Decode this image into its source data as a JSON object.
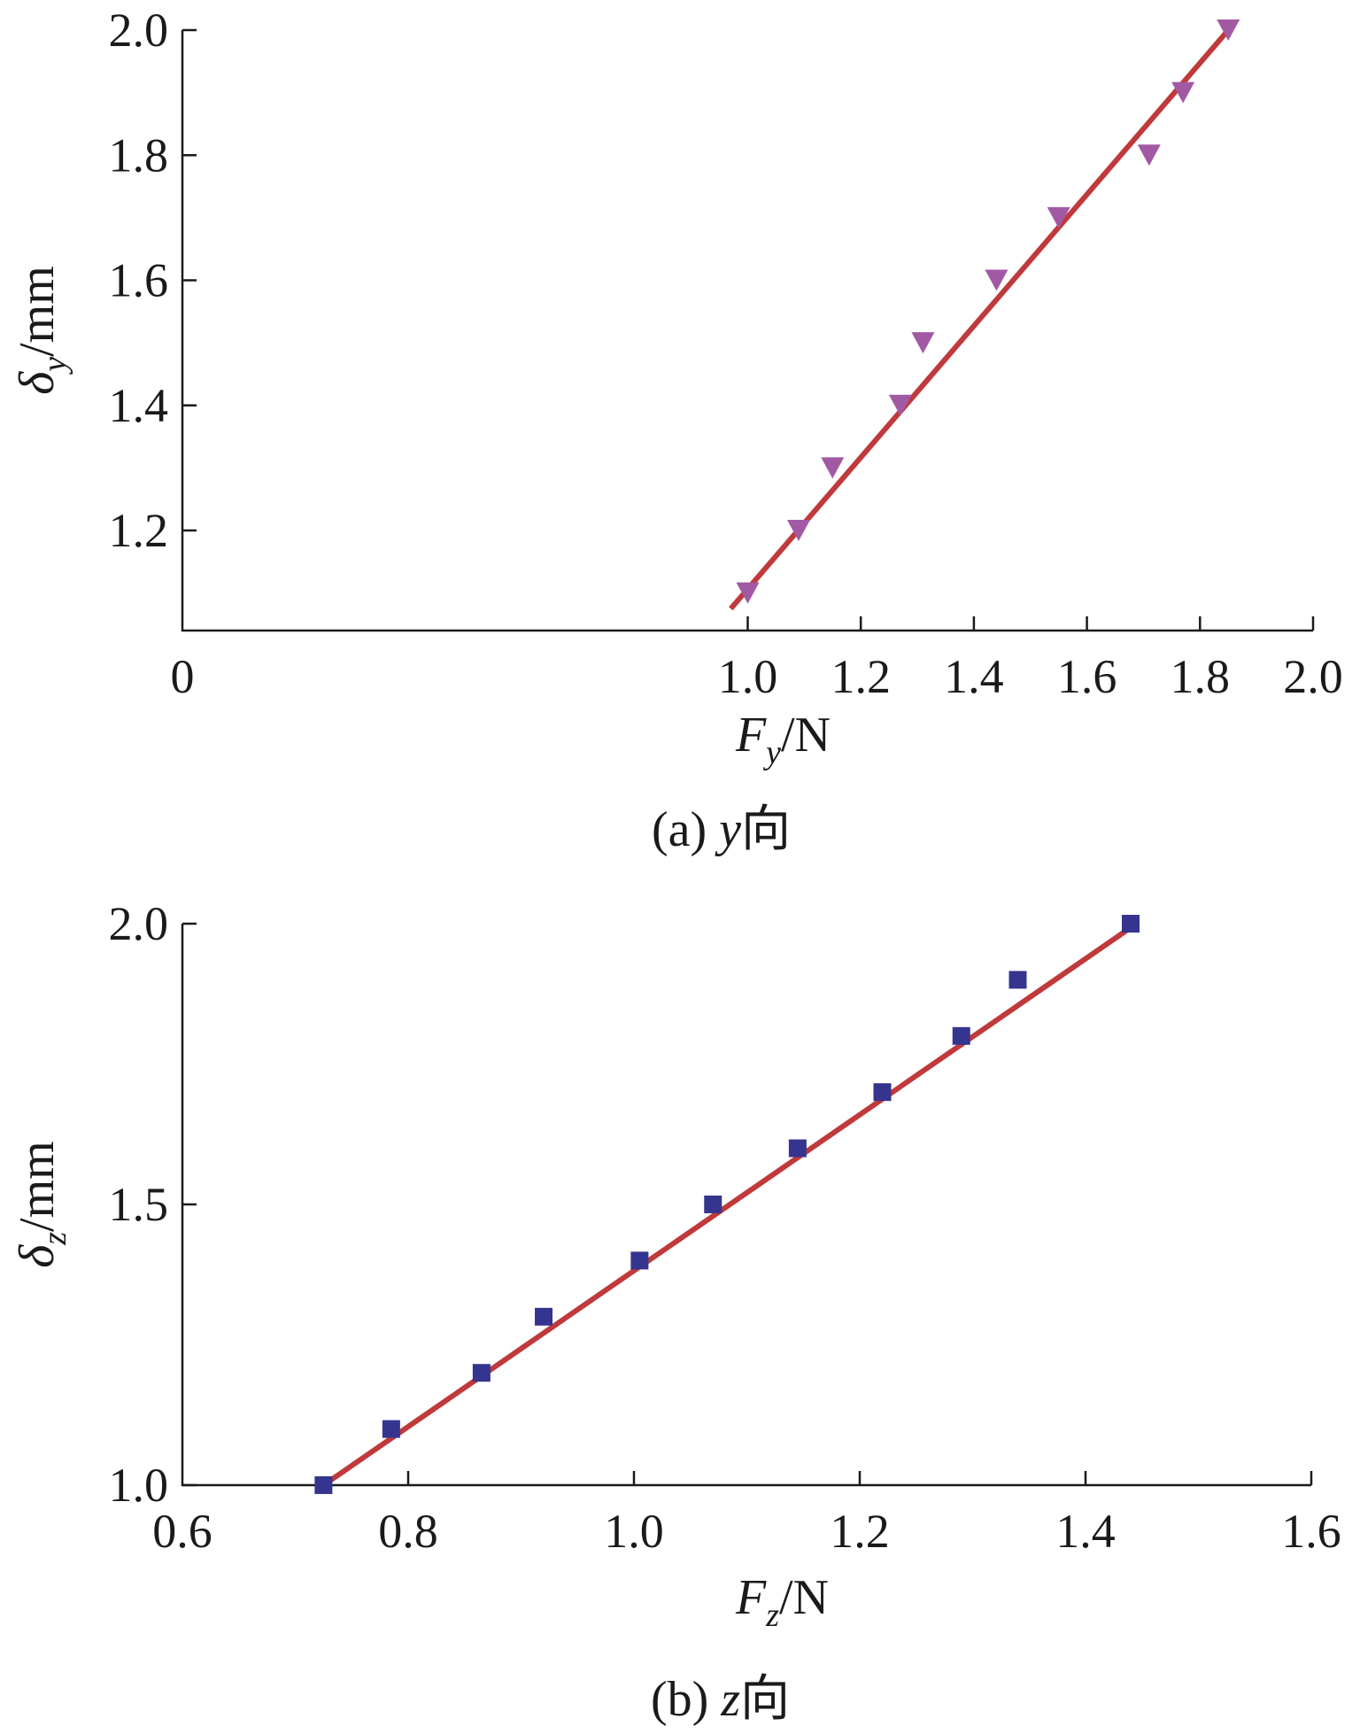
{
  "chart_data": [
    {
      "type": "scatter",
      "caption_prefix": "(a)",
      "caption_var": "y",
      "caption_suffix": "向",
      "xlabel": {
        "var": "F",
        "sub": "y",
        "unit": "/N"
      },
      "ylabel": {
        "var": "δ",
        "sub": "y",
        "unit": "/mm"
      },
      "xlim": [
        0,
        2.0
      ],
      "ylim": [
        1.04,
        2.0
      ],
      "xticks": [
        0,
        1.0,
        1.2,
        1.4,
        1.6,
        1.8,
        2.0
      ],
      "xtick_labels": [
        "0",
        "1.0",
        "1.2",
        "1.4",
        "1.6",
        "1.8",
        "2.0"
      ],
      "yticks": [
        1.2,
        1.4,
        1.6,
        1.8,
        2.0
      ],
      "ytick_labels": [
        "1.2",
        "1.4",
        "1.6",
        "1.8",
        "2.0"
      ],
      "grid": false,
      "series": [
        {
          "marker": "triangle-down",
          "color": "#a259a3",
          "x": [
            1.0,
            1.09,
            1.15,
            1.27,
            1.31,
            1.44,
            1.55,
            1.71,
            1.77,
            1.85
          ],
          "y": [
            1.1,
            1.2,
            1.3,
            1.4,
            1.5,
            1.6,
            1.7,
            1.8,
            1.9,
            2.0
          ]
        }
      ],
      "fit_line": {
        "color": "#c0393b",
        "x": [
          0.97,
          1.85
        ],
        "y": [
          1.075,
          2.0
        ]
      }
    },
    {
      "type": "scatter",
      "caption_prefix": "(b)",
      "caption_var": "z",
      "caption_suffix": "向",
      "xlabel": {
        "var": "F",
        "sub": "z",
        "unit": "/N"
      },
      "ylabel": {
        "var": "δ",
        "sub": "z",
        "unit": "/mm"
      },
      "xlim": [
        0.6,
        1.6
      ],
      "ylim": [
        1.0,
        2.0
      ],
      "xticks": [
        0.6,
        0.8,
        1.0,
        1.2,
        1.4,
        1.6
      ],
      "xtick_labels": [
        "0.6",
        "0.8",
        "1.0",
        "1.2",
        "1.4",
        "1.6"
      ],
      "yticks": [
        1.0,
        1.5,
        2.0
      ],
      "ytick_labels": [
        "1.0",
        "1.5",
        "2.0"
      ],
      "grid": false,
      "series": [
        {
          "marker": "square",
          "color": "#35358f",
          "x": [
            0.725,
            0.785,
            0.865,
            0.92,
            1.005,
            1.07,
            1.145,
            1.22,
            1.29,
            1.34,
            1.44
          ],
          "y": [
            1.0,
            1.1,
            1.2,
            1.3,
            1.4,
            1.5,
            1.6,
            1.7,
            1.8,
            1.9,
            2.0
          ]
        }
      ],
      "fit_line": {
        "color": "#c0393b",
        "x": [
          0.725,
          1.445
        ],
        "y": [
          1.0,
          2.0
        ]
      }
    }
  ]
}
